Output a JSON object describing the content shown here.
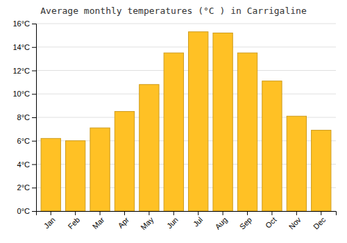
{
  "chart_data": {
    "type": "bar",
    "title": "Average monthly temperatures (°C ) in Carrigaline",
    "categories": [
      "Jan",
      "Feb",
      "Mar",
      "Apr",
      "May",
      "Jun",
      "Jul",
      "Aug",
      "Sep",
      "Oct",
      "Nov",
      "Dec"
    ],
    "values": [
      6.2,
      6.0,
      7.1,
      8.5,
      10.8,
      13.5,
      15.3,
      15.2,
      13.5,
      11.1,
      8.1,
      6.9
    ],
    "color": "#FFC125",
    "ylim": [
      0,
      16
    ],
    "yticks": [
      {
        "value": 0,
        "label": "0°C"
      },
      {
        "value": 2,
        "label": "2°C"
      },
      {
        "value": 4,
        "label": "4°C"
      },
      {
        "value": 6,
        "label": "6°C"
      },
      {
        "value": 8,
        "label": "8°C"
      },
      {
        "value": 10,
        "label": "10°C"
      },
      {
        "value": 12,
        "label": "12°C"
      },
      {
        "value": 14,
        "label": "14°C"
      },
      {
        "value": 16,
        "label": "16°C"
      }
    ],
    "grid": true
  }
}
